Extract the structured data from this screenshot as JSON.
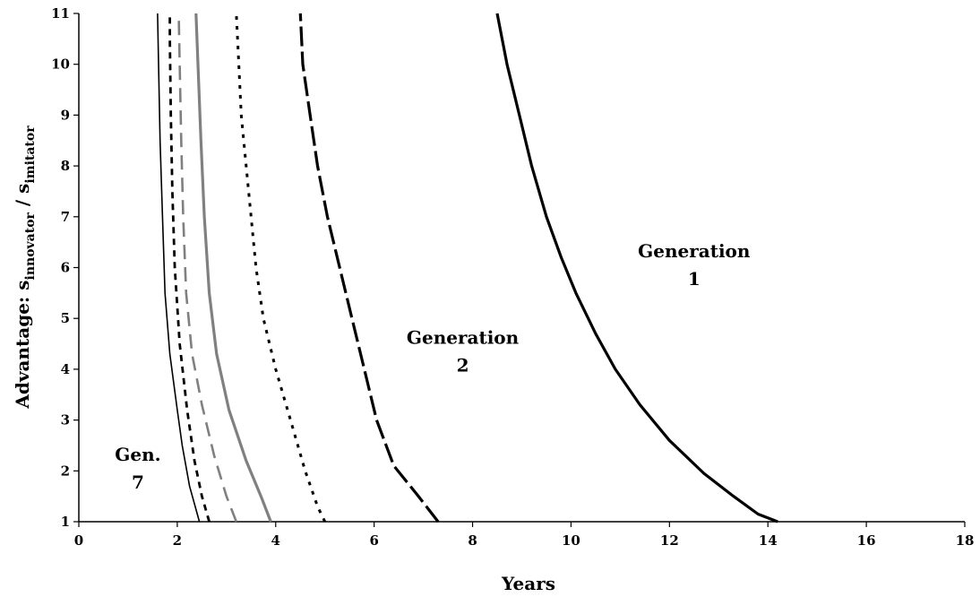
{
  "chart_data": {
    "type": "line",
    "title": "",
    "xlabel": "Years",
    "ylabel": {
      "main": "Advantage: s",
      "sub1": "innovator",
      "sep": " / s",
      "sub2": "imitator"
    },
    "xlim": [
      0,
      18
    ],
    "ylim": [
      1,
      11
    ],
    "x_ticks": [
      "0",
      "2",
      "4",
      "6",
      "8",
      "10",
      "12",
      "14",
      "16",
      "18"
    ],
    "y_ticks": [
      "1",
      "2",
      "3",
      "4",
      "5",
      "6",
      "7",
      "8",
      "9",
      "10",
      "11"
    ],
    "grid": false,
    "series": [
      {
        "color": "#000000",
        "style": "solid-thick",
        "points": [
          [
            14.2,
            1
          ],
          [
            13.8,
            1.15
          ],
          [
            13.3,
            1.5
          ],
          [
            12.7,
            1.95
          ],
          [
            12.0,
            2.6
          ],
          [
            11.4,
            3.3
          ],
          [
            10.9,
            4.0
          ],
          [
            10.5,
            4.7
          ],
          [
            10.1,
            5.5
          ],
          [
            9.8,
            6.2
          ],
          [
            9.5,
            7.0
          ],
          [
            9.2,
            8.0
          ],
          [
            8.95,
            9.0
          ],
          [
            8.7,
            10.0
          ],
          [
            8.5,
            11
          ]
        ]
      },
      {
        "color": "#000000",
        "style": "long-dash-thick",
        "points": [
          [
            7.3,
            1
          ],
          [
            6.9,
            1.5
          ],
          [
            6.4,
            2.1
          ],
          [
            6.05,
            3.0
          ],
          [
            5.8,
            4.0
          ],
          [
            5.55,
            5.0
          ],
          [
            5.3,
            6.0
          ],
          [
            5.05,
            7.0
          ],
          [
            4.85,
            8.0
          ],
          [
            4.7,
            9.0
          ],
          [
            4.55,
            10.0
          ],
          [
            4.5,
            11
          ]
        ]
      },
      {
        "color": "#000000",
        "style": "dotted",
        "points": [
          [
            5.0,
            1
          ],
          [
            4.85,
            1.3
          ],
          [
            4.6,
            2.0
          ],
          [
            4.3,
            3.0
          ],
          [
            4.0,
            4.0
          ],
          [
            3.75,
            5.0
          ],
          [
            3.6,
            6.0
          ],
          [
            3.5,
            7.0
          ],
          [
            3.4,
            8.0
          ],
          [
            3.3,
            9.0
          ],
          [
            3.25,
            10.0
          ],
          [
            3.2,
            11
          ]
        ]
      },
      {
        "color": "#808080",
        "style": "solid-thick",
        "points": [
          [
            3.9,
            1
          ],
          [
            3.7,
            1.5
          ],
          [
            3.4,
            2.2
          ],
          [
            3.05,
            3.2
          ],
          [
            2.8,
            4.3
          ],
          [
            2.65,
            5.5
          ],
          [
            2.55,
            7.0
          ],
          [
            2.48,
            8.5
          ],
          [
            2.42,
            10.0
          ],
          [
            2.38,
            11
          ]
        ]
      },
      {
        "color": "#808080",
        "style": "dashed",
        "points": [
          [
            3.2,
            1
          ],
          [
            3.0,
            1.5
          ],
          [
            2.75,
            2.3
          ],
          [
            2.5,
            3.3
          ],
          [
            2.3,
            4.3
          ],
          [
            2.18,
            5.5
          ],
          [
            2.12,
            7.0
          ],
          [
            2.08,
            8.5
          ],
          [
            2.05,
            10.0
          ],
          [
            2.03,
            11
          ]
        ]
      },
      {
        "color": "#000000",
        "style": "short-dash",
        "points": [
          [
            2.65,
            1
          ],
          [
            2.5,
            1.5
          ],
          [
            2.35,
            2.2
          ],
          [
            2.2,
            3.2
          ],
          [
            2.05,
            4.5
          ],
          [
            1.95,
            6.0
          ],
          [
            1.9,
            7.5
          ],
          [
            1.87,
            9.0
          ],
          [
            1.85,
            10.5
          ],
          [
            1.85,
            11
          ]
        ]
      },
      {
        "color": "#000000",
        "style": "solid-thin",
        "points": [
          [
            2.45,
            1
          ],
          [
            2.25,
            1.7
          ],
          [
            2.1,
            2.5
          ],
          [
            2.0,
            3.2
          ],
          [
            1.85,
            4.3
          ],
          [
            1.75,
            5.5
          ],
          [
            1.7,
            7.0
          ],
          [
            1.65,
            8.5
          ],
          [
            1.62,
            10.0
          ],
          [
            1.6,
            11
          ]
        ]
      }
    ],
    "annotations": [
      {
        "lines": [
          "Generation",
          "1"
        ],
        "x": 12.5,
        "y": 6.2
      },
      {
        "lines": [
          "Generation",
          "2"
        ],
        "x": 7.8,
        "y": 4.5
      },
      {
        "lines": [
          "Gen.",
          "7"
        ],
        "x": 1.2,
        "y": 2.2
      }
    ]
  }
}
